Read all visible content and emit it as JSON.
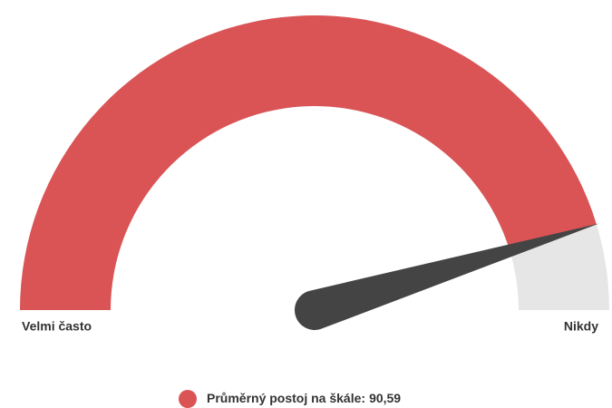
{
  "chart_data": {
    "type": "gauge",
    "series": [
      {
        "name": "Průměrný postoj na škále:",
        "color": "#da5456",
        "values": [
          90.59
        ],
        "value_labels": [
          "90,59"
        ]
      }
    ],
    "ylim": [
      0,
      100
    ],
    "min_label": "Velmi často",
    "max_label": "Nikdy",
    "track_color": "#e6e6e6",
    "needle_color": "#444444"
  }
}
